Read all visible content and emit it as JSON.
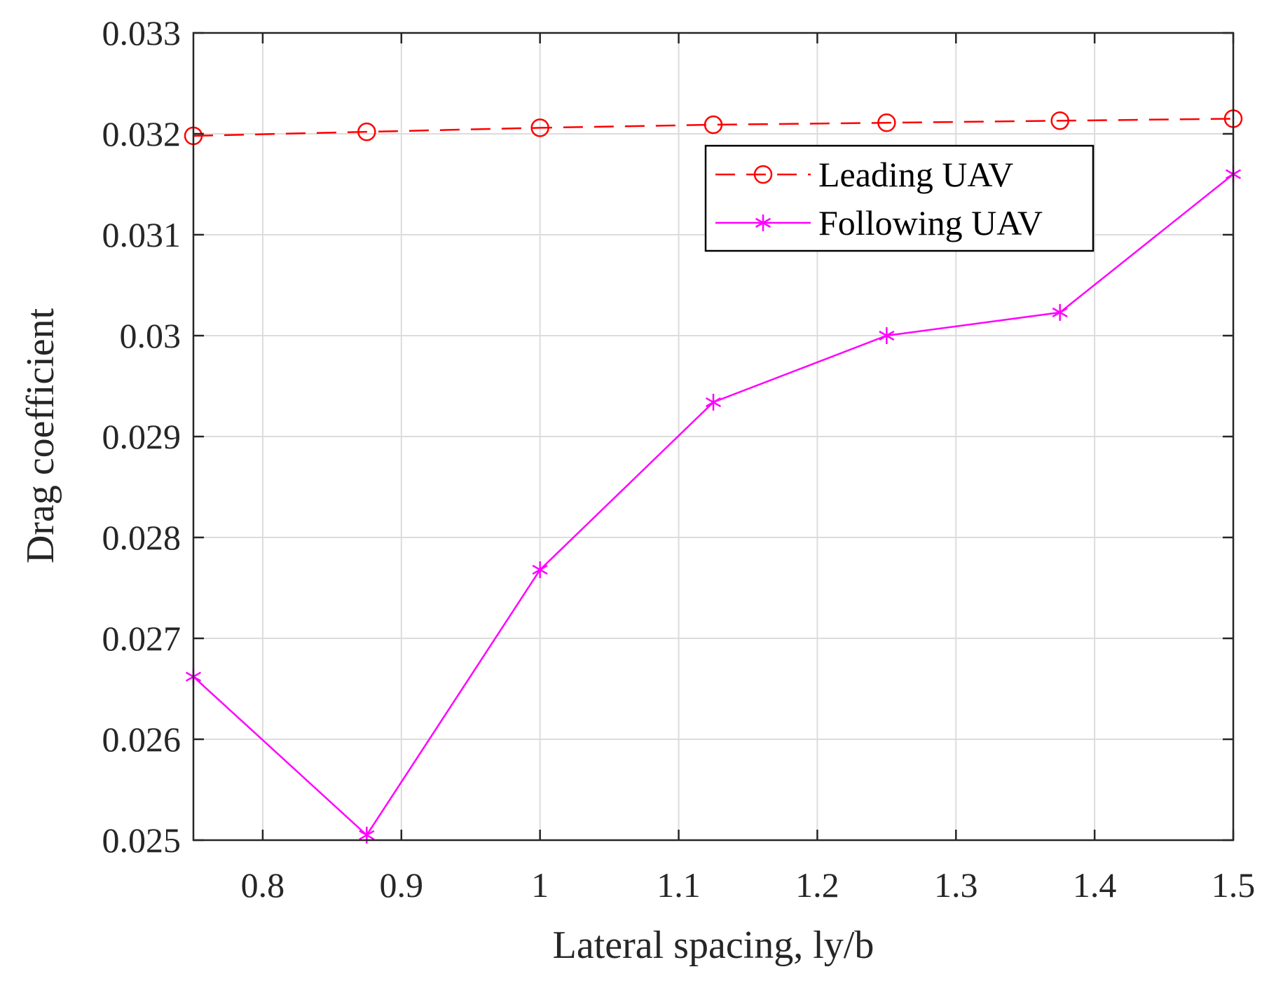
{
  "chart_data": {
    "type": "line",
    "title": "",
    "xlabel": "Lateral spacing, ly/b",
    "ylabel": "Drag coefficient",
    "xlim": [
      0.75,
      1.5
    ],
    "ylim": [
      0.025,
      0.033
    ],
    "grid": true,
    "legend_position": "top-right",
    "x": [
      0.75,
      0.875,
      1.0,
      1.125,
      1.25,
      1.375,
      1.5
    ],
    "xticks": [
      0.8,
      0.9,
      1.0,
      1.1,
      1.2,
      1.3,
      1.4,
      1.5
    ],
    "xtick_labels": [
      "0.8",
      "0.9",
      "1",
      "1.1",
      "1.2",
      "1.3",
      "1.4",
      "1.5"
    ],
    "yticks": [
      0.025,
      0.026,
      0.027,
      0.028,
      0.029,
      0.03,
      0.031,
      0.032,
      0.033
    ],
    "ytick_labels": [
      "0.025",
      "0.026",
      "0.027",
      "0.028",
      "0.029",
      "0.03",
      "0.031",
      "0.032",
      "0.033"
    ],
    "series": [
      {
        "name": "Leading UAV",
        "key": "leading",
        "color": "#ff0000",
        "line_style": "dashed",
        "marker": "circle",
        "values": [
          0.03198,
          0.03202,
          0.03206,
          0.03209,
          0.03211,
          0.03213,
          0.03215
        ]
      },
      {
        "name": "Following UAV",
        "key": "following",
        "color": "#ff00ff",
        "line_style": "solid",
        "marker": "asterisk",
        "values": [
          0.02662,
          0.02505,
          0.02768,
          0.02934,
          0.03,
          0.03023,
          0.0316
        ]
      }
    ]
  }
}
